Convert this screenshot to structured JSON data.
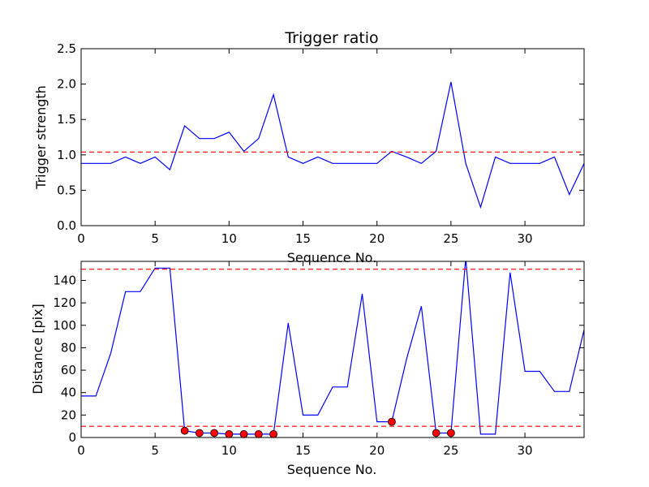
{
  "chart_data": [
    {
      "type": "line",
      "title": "Trigger ratio",
      "xlabel": "Sequence No.",
      "ylabel": "Trigger strength",
      "xlim": [
        0,
        34
      ],
      "ylim": [
        0,
        2.5
      ],
      "xticks": [
        0,
        5,
        10,
        15,
        20,
        25,
        30
      ],
      "xtick_labels": [
        "0",
        "5",
        "10",
        "15",
        "20",
        "25",
        "30"
      ],
      "yticks": [
        0,
        0.5,
        1.0,
        1.5,
        2.0,
        2.5
      ],
      "ytick_labels": [
        "0.0",
        "0.5",
        "1.0",
        "1.5",
        "2.0",
        "2.5"
      ],
      "grid": false,
      "series": [
        {
          "color": "#0000ff",
          "x": [
            0,
            1,
            2,
            3,
            4,
            5,
            6,
            7,
            8,
            9,
            10,
            11,
            12,
            13,
            14,
            15,
            16,
            17,
            18,
            19,
            20,
            21,
            22,
            23,
            24,
            25,
            26,
            27,
            28,
            29,
            30,
            31,
            32,
            33,
            34
          ],
          "values": [
            0.88,
            0.88,
            0.88,
            0.97,
            0.88,
            0.97,
            0.79,
            1.41,
            1.23,
            1.23,
            1.32,
            1.05,
            1.23,
            1.85,
            0.97,
            0.88,
            0.97,
            0.88,
            0.88,
            0.88,
            0.88,
            1.05,
            0.97,
            0.88,
            1.05,
            2.03,
            0.88,
            0.26,
            0.97,
            0.88,
            0.88,
            0.88,
            0.97,
            0.44,
            0.88
          ]
        }
      ],
      "hlines": [
        {
          "y": 1.04,
          "color": "#ff0000",
          "style": "dashed"
        }
      ]
    },
    {
      "type": "line",
      "title": "",
      "xlabel": "Sequence No.",
      "ylabel": "Distance [pix]",
      "xlim": [
        0,
        34
      ],
      "ylim": [
        0,
        157
      ],
      "xticks": [
        0,
        5,
        10,
        15,
        20,
        25,
        30
      ],
      "xtick_labels": [
        "0",
        "5",
        "10",
        "15",
        "20",
        "25",
        "30"
      ],
      "yticks": [
        0,
        20,
        40,
        60,
        80,
        100,
        120,
        140
      ],
      "ytick_labels": [
        "0",
        "20",
        "40",
        "60",
        "80",
        "100",
        "120",
        "140"
      ],
      "grid": false,
      "series": [
        {
          "color": "#0000ff",
          "x": [
            0,
            1,
            2,
            3,
            4,
            5,
            6,
            7,
            8,
            9,
            10,
            11,
            12,
            13,
            14,
            15,
            16,
            17,
            18,
            19,
            20,
            21,
            22,
            23,
            24,
            25,
            26,
            27,
            28,
            29,
            30,
            31,
            32,
            33,
            34
          ],
          "values": [
            37,
            37,
            75,
            130,
            130,
            151,
            151,
            6,
            4,
            4,
            3,
            3,
            3,
            3,
            102,
            20,
            20,
            45,
            45,
            128,
            14,
            14,
            70,
            117,
            4,
            4,
            160,
            3,
            3,
            147,
            59,
            59,
            41,
            41,
            96
          ]
        }
      ],
      "markers": {
        "color": "#ff0000",
        "x": [
          7,
          8,
          9,
          10,
          11,
          12,
          13,
          21,
          24,
          25
        ],
        "y": [
          6,
          4,
          4,
          3,
          3,
          3,
          3,
          14,
          4,
          4
        ]
      },
      "hlines": [
        {
          "y": 150,
          "color": "#ff0000",
          "style": "dashed"
        },
        {
          "y": 10,
          "color": "#ff0000",
          "style": "dashed"
        }
      ]
    }
  ]
}
